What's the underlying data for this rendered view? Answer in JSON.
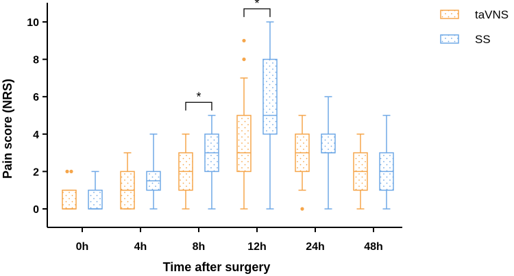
{
  "chart_data": {
    "type": "box",
    "title": "",
    "xlabel": "Time after surgery",
    "ylabel": "Pain score (NRS)",
    "ylim": [
      0,
      11
    ],
    "yticks": [
      0,
      2,
      4,
      6,
      8,
      10
    ],
    "categories": [
      "0h",
      "4h",
      "8h",
      "12h",
      "24h",
      "48h"
    ],
    "series": [
      {
        "name": "taVNS",
        "color": "#F5A54A",
        "boxes": [
          {
            "min": 0,
            "q1": 0,
            "median": 0,
            "q3": 1,
            "max": 1,
            "outliers": [
              2,
              2
            ]
          },
          {
            "min": 0,
            "q1": 0,
            "median": 1,
            "q3": 2,
            "max": 3,
            "outliers": []
          },
          {
            "min": 0,
            "q1": 1,
            "median": 2,
            "q3": 3,
            "max": 4,
            "outliers": []
          },
          {
            "min": 0,
            "q1": 2,
            "median": 3,
            "q3": 5,
            "max": 7,
            "outliers": [
              8,
              9
            ]
          },
          {
            "min": 1,
            "q1": 2,
            "median": 3,
            "q3": 4,
            "max": 5,
            "outliers": [
              0
            ]
          },
          {
            "min": 0,
            "q1": 1,
            "median": 2,
            "q3": 3,
            "max": 4,
            "outliers": []
          }
        ]
      },
      {
        "name": "SS",
        "color": "#6FA8E6",
        "boxes": [
          {
            "min": 0,
            "q1": 0,
            "median": 0,
            "q3": 1,
            "max": 2,
            "outliers": []
          },
          {
            "min": 0,
            "q1": 1,
            "median": 1.5,
            "q3": 2,
            "max": 4,
            "outliers": []
          },
          {
            "min": 0,
            "q1": 2,
            "median": 3,
            "q3": 4,
            "max": 5,
            "outliers": []
          },
          {
            "min": 0,
            "q1": 4,
            "median": 5,
            "q3": 8,
            "max": 10,
            "outliers": []
          },
          {
            "min": 0,
            "q1": 3,
            "median": 3,
            "q3": 4,
            "max": 6,
            "outliers": []
          },
          {
            "min": 0,
            "q1": 1,
            "median": 2,
            "q3": 3,
            "max": 5,
            "outliers": []
          }
        ]
      }
    ],
    "significance": [
      {
        "category_index": 2,
        "label": "*",
        "y": 5.7
      },
      {
        "category_index": 3,
        "label": "*",
        "y": 10.7
      }
    ],
    "legend": {
      "position": "top-right",
      "entries": [
        "taVNS",
        "SS"
      ]
    }
  }
}
